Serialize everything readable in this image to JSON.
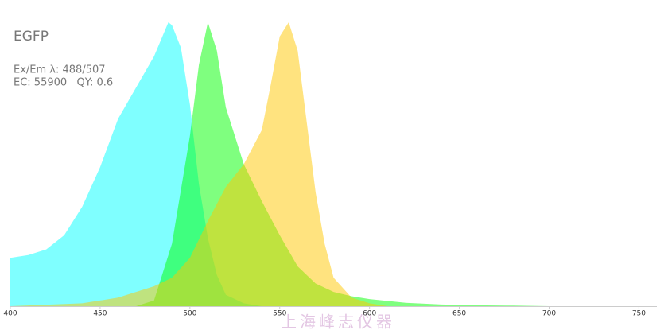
{
  "chart_data": {
    "type": "area",
    "title": "EGFP",
    "annotations": [
      "Ex/Em λ: 488/507",
      "EC: 55900   QY: 0.6"
    ],
    "watermark": "上海峰志仪器",
    "xlim": [
      400,
      760
    ],
    "ylim": [
      0,
      1
    ],
    "xticks": [
      400,
      450,
      500,
      550,
      600,
      650,
      700,
      750
    ],
    "series": [
      {
        "color": "#00ffff",
        "x": [
          400,
          410,
          420,
          430,
          440,
          450,
          460,
          470,
          480,
          488,
          490,
          495,
          500,
          505,
          510,
          515,
          520,
          530,
          540
        ],
        "values": [
          0.17,
          0.18,
          0.2,
          0.25,
          0.35,
          0.49,
          0.66,
          0.77,
          0.88,
          1.0,
          0.99,
          0.91,
          0.71,
          0.43,
          0.24,
          0.11,
          0.04,
          0.01,
          0
        ]
      },
      {
        "color": "#00ff00",
        "x": [
          470,
          480,
          490,
          500,
          505,
          510,
          515,
          520,
          530,
          540,
          550,
          560,
          570,
          580,
          590,
          600,
          620,
          640,
          660,
          680,
          700
        ],
        "values": [
          0,
          0.02,
          0.22,
          0.6,
          0.85,
          1.0,
          0.9,
          0.7,
          0.5,
          0.37,
          0.25,
          0.14,
          0.08,
          0.05,
          0.035,
          0.025,
          0.012,
          0.006,
          0.003,
          0.002,
          0
        ]
      },
      {
        "color": "#ffc800",
        "x": [
          400,
          440,
          460,
          480,
          490,
          500,
          510,
          520,
          530,
          540,
          545,
          550,
          555,
          560,
          565,
          570,
          575,
          580,
          590,
          600,
          610
        ],
        "values": [
          0,
          0.01,
          0.03,
          0.07,
          0.1,
          0.17,
          0.3,
          0.42,
          0.5,
          0.62,
          0.78,
          0.95,
          1.0,
          0.9,
          0.65,
          0.4,
          0.22,
          0.1,
          0.03,
          0.01,
          0
        ]
      }
    ]
  }
}
